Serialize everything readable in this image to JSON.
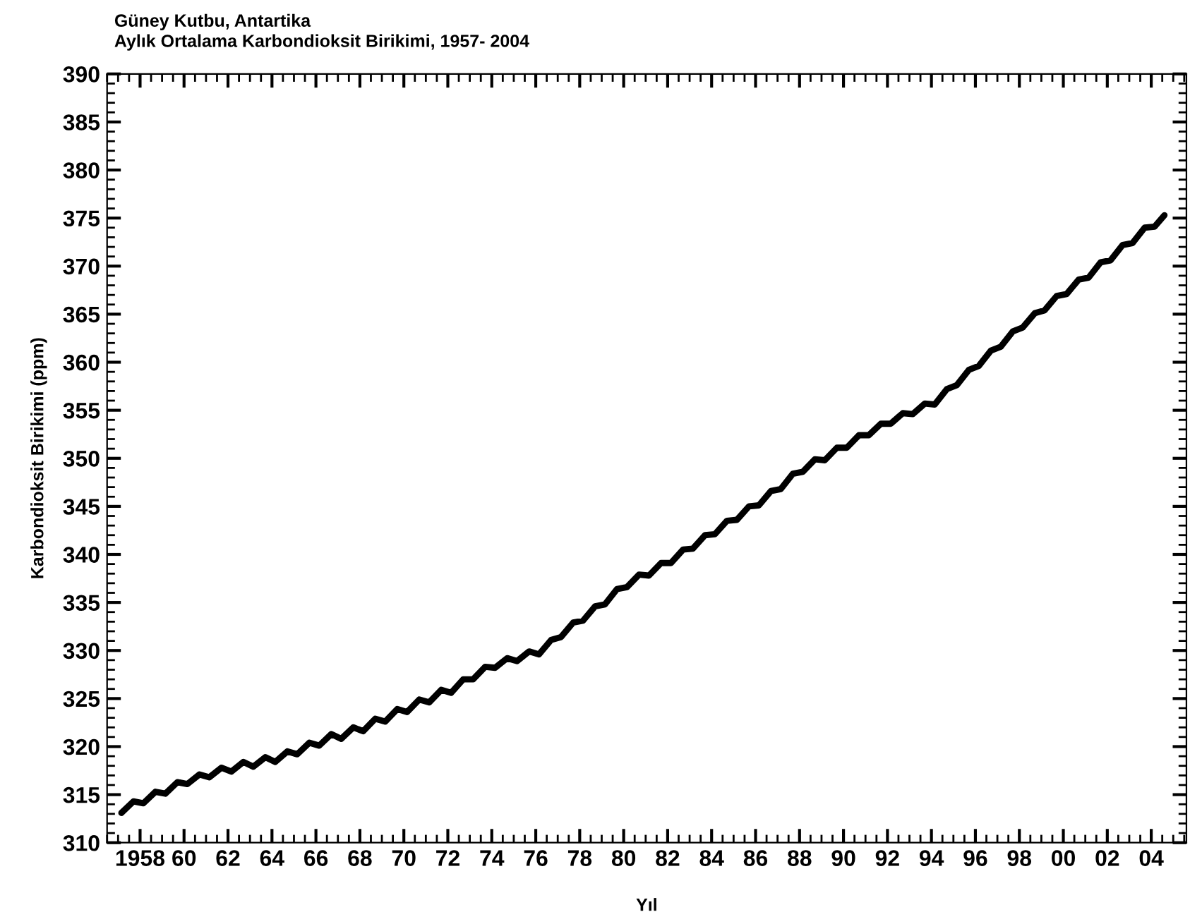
{
  "chart_data": {
    "type": "line",
    "title": "Güney Kutbu, Antartika",
    "subtitle": "Aylık Ortalama Karbondioksit Birikimi, 1957- 2004",
    "xlabel": "Yıl",
    "ylabel": "Karbondioksit Birikimi (ppm)",
    "xlim": [
      1956.5,
      2005.6
    ],
    "ylim": [
      310,
      390
    ],
    "xticks": [
      {
        "value": 1958,
        "label": "1958"
      },
      {
        "value": 1960,
        "label": "60"
      },
      {
        "value": 1962,
        "label": "62"
      },
      {
        "value": 1964,
        "label": "64"
      },
      {
        "value": 1966,
        "label": "66"
      },
      {
        "value": 1968,
        "label": "68"
      },
      {
        "value": 1970,
        "label": "70"
      },
      {
        "value": 1972,
        "label": "72"
      },
      {
        "value": 1974,
        "label": "74"
      },
      {
        "value": 1976,
        "label": "76"
      },
      {
        "value": 1978,
        "label": "78"
      },
      {
        "value": 1980,
        "label": "80"
      },
      {
        "value": 1982,
        "label": "82"
      },
      {
        "value": 1984,
        "label": "84"
      },
      {
        "value": 1986,
        "label": "86"
      },
      {
        "value": 1988,
        "label": "88"
      },
      {
        "value": 1990,
        "label": "90"
      },
      {
        "value": 1992,
        "label": "92"
      },
      {
        "value": 1994,
        "label": "94"
      },
      {
        "value": 1996,
        "label": "96"
      },
      {
        "value": 1998,
        "label": "98"
      },
      {
        "value": 2000,
        "label": "00"
      },
      {
        "value": 2002,
        "label": "02"
      },
      {
        "value": 2004,
        "label": "04"
      }
    ],
    "yticks": [
      310,
      315,
      320,
      325,
      330,
      335,
      340,
      345,
      350,
      355,
      360,
      365,
      370,
      375,
      380,
      385,
      390
    ],
    "grid": false,
    "marker": "none",
    "line_style": "solid",
    "series": [
      {
        "color": "#000000",
        "x": [
          1957.15,
          1957.7,
          1958.15,
          1958.7,
          1959.15,
          1959.7,
          1960.15,
          1960.7,
          1961.15,
          1961.7,
          1962.15,
          1962.7,
          1963.15,
          1963.7,
          1964.15,
          1964.7,
          1965.15,
          1965.7,
          1966.15,
          1966.7,
          1967.15,
          1967.7,
          1968.15,
          1968.7,
          1969.15,
          1969.7,
          1970.15,
          1970.7,
          1971.15,
          1971.7,
          1972.15,
          1972.7,
          1973.15,
          1973.7,
          1974.15,
          1974.7,
          1975.15,
          1975.7,
          1976.15,
          1976.7,
          1977.15,
          1977.7,
          1978.15,
          1978.7,
          1979.15,
          1979.7,
          1980.15,
          1980.7,
          1981.15,
          1981.7,
          1982.15,
          1982.7,
          1983.15,
          1983.7,
          1984.15,
          1984.7,
          1985.15,
          1985.7,
          1986.15,
          1986.7,
          1987.15,
          1987.7,
          1988.15,
          1988.7,
          1989.15,
          1989.7,
          1990.15,
          1990.7,
          1991.15,
          1991.7,
          1992.15,
          1992.7,
          1993.15,
          1993.7,
          1994.15,
          1994.7,
          1995.15,
          1995.7,
          1996.15,
          1996.7,
          1997.15,
          1997.7,
          1998.15,
          1998.7,
          1999.15,
          1999.7,
          2000.15,
          2000.7,
          2001.15,
          2001.7,
          2002.15,
          2002.7,
          2003.15,
          2003.7,
          2004.15,
          2004.6
        ],
        "values": [
          313.1,
          314.3,
          314.1,
          315.3,
          315.1,
          316.3,
          316.1,
          317.1,
          316.8,
          317.8,
          317.4,
          318.4,
          317.9,
          318.9,
          318.4,
          319.5,
          319.2,
          320.4,
          320.1,
          321.3,
          320.8,
          322.0,
          321.6,
          322.9,
          322.6,
          323.9,
          323.6,
          324.9,
          324.6,
          325.9,
          325.6,
          327.0,
          327.0,
          328.3,
          328.2,
          329.2,
          328.9,
          329.9,
          329.6,
          331.1,
          331.4,
          332.9,
          333.1,
          334.6,
          334.8,
          336.4,
          336.6,
          337.9,
          337.8,
          339.1,
          339.1,
          340.5,
          340.6,
          342.0,
          342.1,
          343.5,
          343.6,
          345.0,
          345.1,
          346.6,
          346.8,
          348.4,
          348.6,
          349.9,
          349.8,
          351.1,
          351.1,
          352.4,
          352.4,
          353.6,
          353.6,
          354.7,
          354.6,
          355.7,
          355.6,
          357.2,
          357.6,
          359.2,
          359.6,
          361.2,
          361.6,
          363.2,
          363.6,
          365.1,
          365.4,
          366.9,
          367.1,
          368.6,
          368.8,
          370.4,
          370.6,
          372.2,
          372.4,
          374.0,
          374.1,
          375.3
        ]
      }
    ]
  }
}
